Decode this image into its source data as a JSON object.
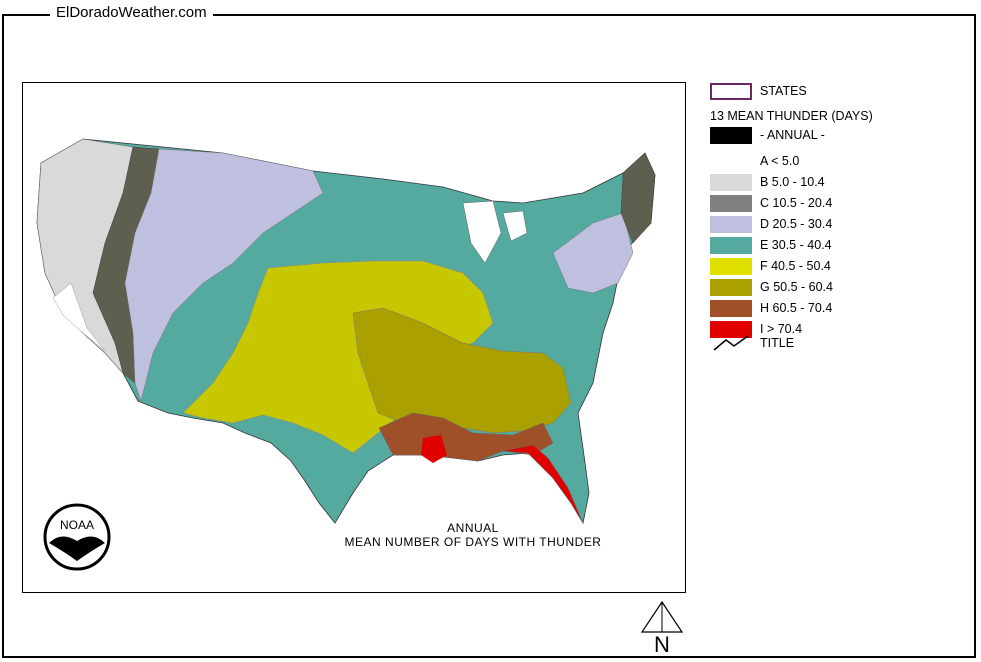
{
  "site": {
    "title": "ElDoradoWeather.com"
  },
  "map": {
    "caption_line1": "ANNUAL",
    "caption_line2": "MEAN NUMBER OF DAYS WITH THUNDER",
    "logo_text": "NOAA",
    "north_label": "N"
  },
  "legend": {
    "states_label": "STATES",
    "heading": "13 MEAN THUNDER (DAYS)",
    "annual_label": "- ANNUAL -",
    "title_label": "TITLE",
    "classes": [
      {
        "id": "A",
        "label": "A < 5.0",
        "color": "#ffffff"
      },
      {
        "id": "B",
        "label": "B 5.0 - 10.4",
        "color": "#d9d9d9"
      },
      {
        "id": "C",
        "label": "C 10.5 - 20.4",
        "color": "#808080"
      },
      {
        "id": "D",
        "label": "D 20.5 - 30.4",
        "color": "#bfbfdf"
      },
      {
        "id": "E",
        "label": "E 30.5 - 40.4",
        "color": "#55aaa0"
      },
      {
        "id": "F",
        "label": "F 40.5 - 50.4",
        "color": "#dfdf00"
      },
      {
        "id": "G",
        "label": "G 50.5 - 60.4",
        "color": "#aaa000"
      },
      {
        "id": "H",
        "label": "H 60.5 - 70.4",
        "color": "#a05028"
      },
      {
        "id": "I",
        "label": "I > 70.4",
        "color": "#e00000"
      }
    ],
    "annual_color": "#000000",
    "states_border_color": "#6a2860"
  },
  "regions": [
    {
      "name": "pacific-northwest-coast",
      "class": "B"
    },
    {
      "name": "california-coast",
      "class": "A"
    },
    {
      "name": "cascades-sierra",
      "class": "C"
    },
    {
      "name": "intermountain-west",
      "class": "D"
    },
    {
      "name": "northern-plains",
      "class": "E"
    },
    {
      "name": "southwest-highlands",
      "class": "E"
    },
    {
      "name": "central-plains",
      "class": "F"
    },
    {
      "name": "midwest",
      "class": "F"
    },
    {
      "name": "mississippi-valley",
      "class": "G"
    },
    {
      "name": "southeast",
      "class": "G"
    },
    {
      "name": "gulf-coast",
      "class": "H"
    },
    {
      "name": "florida",
      "class": "I"
    },
    {
      "name": "great-lakes",
      "class": "E"
    },
    {
      "name": "northeast",
      "class": "D"
    },
    {
      "name": "new-england-north",
      "class": "C"
    }
  ]
}
